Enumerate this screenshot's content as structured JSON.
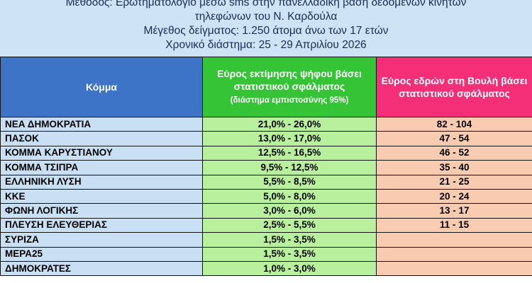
{
  "header": {
    "lines": [
      "Μέθοδος: Ερωτηματολόγιο μέσω sms στην πανελλαδική βάση δεδομένων κινητών",
      "τηλεφώνων του Ν. Καρδούλα",
      "Μέγεθος δείγματος: 1.250 άτομα άνω των 17 ετών",
      "Χρονικό διάστημα: 25 - 29 Απριλίου 2026"
    ]
  },
  "table": {
    "columns": [
      "Κόμμα",
      "Εύρος εκτίμησης ψήφου βάσει στατιστικού σφάλματος",
      "Εύρος εδρών στη Βουλή βάσει στατιστικού σφάλματος"
    ],
    "column_note": "(διάστημα εμπιστοσύνης 95%)",
    "rows": [
      [
        "ΝΕΑ ΔΗΜΟΚΡΑΤΙΑ",
        "21,0% - 26,0%",
        "82 - 104"
      ],
      [
        "ΠΑΣΟΚ",
        "13,0% - 17,0%",
        "47 - 54"
      ],
      [
        "ΚΟΜΜΑ ΚΑΡΥΣΤΙΑΝΟΥ",
        "12,5% - 16,5%",
        "46 - 52"
      ],
      [
        "ΚΟΜΜΑ ΤΣΙΠΡΑ",
        "9,5% - 12,5%",
        "35 - 40"
      ],
      [
        "ΕΛΛΗΝΙΚΗ ΛΥΣΗ",
        "5,5% - 8,5%",
        "21 - 25"
      ],
      [
        "ΚΚΕ",
        "5,0% - 8,0%",
        "20 - 24"
      ],
      [
        "ΦΩΝΗ ΛΟΓΙΚΗΣ",
        "3,0% - 6,0%",
        "13 - 17"
      ],
      [
        "ΠΛΕΥΣΗ ΕΛΕΥΘΕΡΙΑΣ",
        "2,5% - 5,5%",
        "11 - 15"
      ],
      [
        "ΣΥΡΙΖΑ",
        "1,5% - 3,5%"
      ],
      [
        "ΜΕΡΑ25",
        "1,5% - 3,5%"
      ],
      [
        "ΔΗΜΟΚΡΑΤΕΣ",
        "1,0% - 3,0%"
      ]
    ]
  }
}
